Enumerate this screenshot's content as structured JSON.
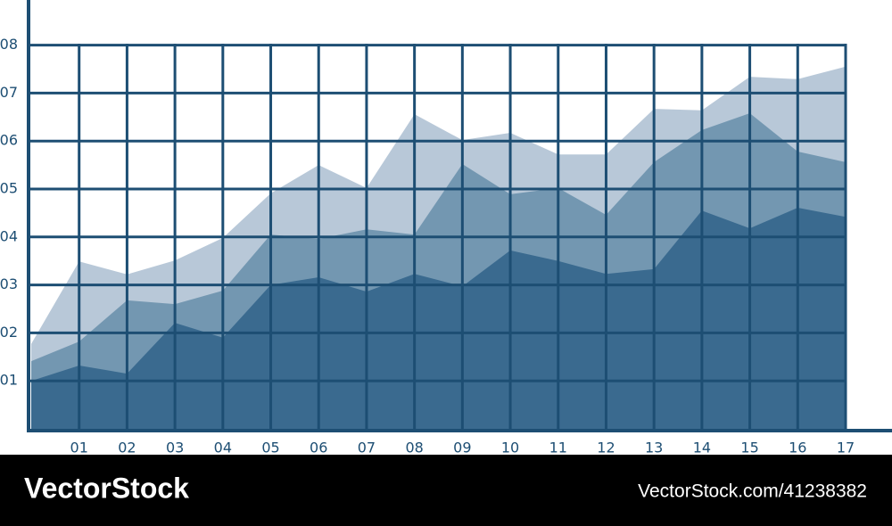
{
  "chart_data": {
    "type": "area",
    "x": [
      0,
      1,
      2,
      3,
      4,
      5,
      6,
      7,
      8,
      9,
      10,
      11,
      12,
      13,
      14,
      15,
      16,
      17
    ],
    "series": [
      {
        "color": "#b8c8d8",
        "values": [
          1.77,
          3.49,
          3.22,
          3.51,
          3.98,
          4.91,
          5.5,
          5.02,
          6.56,
          6.02,
          6.17,
          5.72,
          5.72,
          6.67,
          6.64,
          7.34,
          7.29,
          7.55
        ]
      },
      {
        "color": "#7397b1",
        "values": [
          1.41,
          1.82,
          2.68,
          2.6,
          2.88,
          4.05,
          3.96,
          4.16,
          4.05,
          5.52,
          4.89,
          5.02,
          4.46,
          5.56,
          6.23,
          6.58,
          5.78,
          5.56
        ]
      },
      {
        "color": "#3a6a8f",
        "values": [
          1.0,
          1.32,
          1.15,
          2.21,
          1.9,
          3.0,
          3.16,
          2.86,
          3.23,
          2.97,
          3.72,
          3.5,
          3.23,
          3.33,
          4.55,
          4.18,
          4.61,
          4.42
        ]
      }
    ],
    "xlim": [
      0,
      17
    ],
    "ylim": [
      0,
      8
    ],
    "xticks": [
      {
        "value": 1,
        "label": "01"
      },
      {
        "value": 2,
        "label": "02"
      },
      {
        "value": 3,
        "label": "03"
      },
      {
        "value": 4,
        "label": "04"
      },
      {
        "value": 5,
        "label": "05"
      },
      {
        "value": 6,
        "label": "06"
      },
      {
        "value": 7,
        "label": "07"
      },
      {
        "value": 8,
        "label": "08"
      },
      {
        "value": 9,
        "label": "09"
      },
      {
        "value": 10,
        "label": "10"
      },
      {
        "value": 11,
        "label": "11"
      },
      {
        "value": 12,
        "label": "12"
      },
      {
        "value": 13,
        "label": "13"
      },
      {
        "value": 14,
        "label": "14"
      },
      {
        "value": 15,
        "label": "15"
      },
      {
        "value": 16,
        "label": "16"
      },
      {
        "value": 17,
        "label": "17"
      }
    ],
    "yticks": [
      {
        "value": 1,
        "label": "01"
      },
      {
        "value": 2,
        "label": "02"
      },
      {
        "value": 3,
        "label": "03"
      },
      {
        "value": 4,
        "label": "04"
      },
      {
        "value": 5,
        "label": "05"
      },
      {
        "value": 6,
        "label": "06"
      },
      {
        "value": 7,
        "label": "07"
      },
      {
        "value": 8,
        "label": "08"
      }
    ],
    "grid": true,
    "grid_color": "#1d4e73"
  },
  "watermark": {
    "brand": "VectorStock",
    "url": "VectorStock.com/41238382"
  }
}
